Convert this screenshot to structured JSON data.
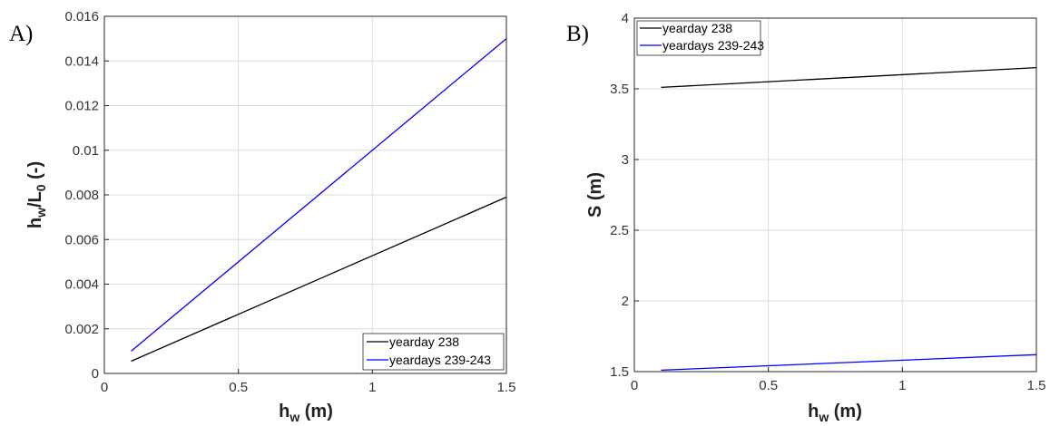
{
  "chart_data": [
    {
      "panel_letter": "A)",
      "type": "line",
      "xlabel": {
        "main": "h",
        "sub": "w",
        "rest": " (m)"
      },
      "ylabel": {
        "main": "h",
        "sub": "w",
        "mid": "/L",
        "sub2": "0",
        "rest": " (-)"
      },
      "xlim": [
        0,
        1.5
      ],
      "ylim": [
        0,
        0.016
      ],
      "xticks": [
        "0",
        "0.5",
        "1",
        "1.5"
      ],
      "yticks": [
        "0",
        "0.002",
        "0.004",
        "0.006",
        "0.008",
        "0.01",
        "0.012",
        "0.014",
        "0.016"
      ],
      "grid": true,
      "legend_position": "bottom-right",
      "series": [
        {
          "name": "yearday 238",
          "color": "#000000",
          "x": [
            0.1,
            1.5
          ],
          "y": [
            0.00055,
            0.0079
          ]
        },
        {
          "name": "yeardays 239-243",
          "color": "#0000ff",
          "x": [
            0.1,
            1.5
          ],
          "y": [
            0.001,
            0.015
          ]
        }
      ]
    },
    {
      "panel_letter": "B)",
      "type": "line",
      "xlabel": {
        "main": "h",
        "sub": "w",
        "rest": " (m)"
      },
      "ylabel": {
        "main": "S",
        "sub": "",
        "mid": "",
        "sub2": "",
        "rest": " (m)"
      },
      "xlim": [
        0,
        1.5
      ],
      "ylim": [
        1.5,
        4
      ],
      "xticks": [
        "0",
        "0.5",
        "1",
        "1.5"
      ],
      "yticks": [
        "1.5",
        "2",
        "2.5",
        "3",
        "3.5",
        "4"
      ],
      "grid": true,
      "legend_position": "top-left",
      "series": [
        {
          "name": "yearday 238",
          "color": "#000000",
          "x": [
            0.1,
            1.5
          ],
          "y": [
            3.51,
            3.65
          ]
        },
        {
          "name": "yeardays 239-243",
          "color": "#0000ff",
          "x": [
            0.1,
            1.5
          ],
          "y": [
            1.51,
            1.62
          ]
        }
      ]
    }
  ]
}
